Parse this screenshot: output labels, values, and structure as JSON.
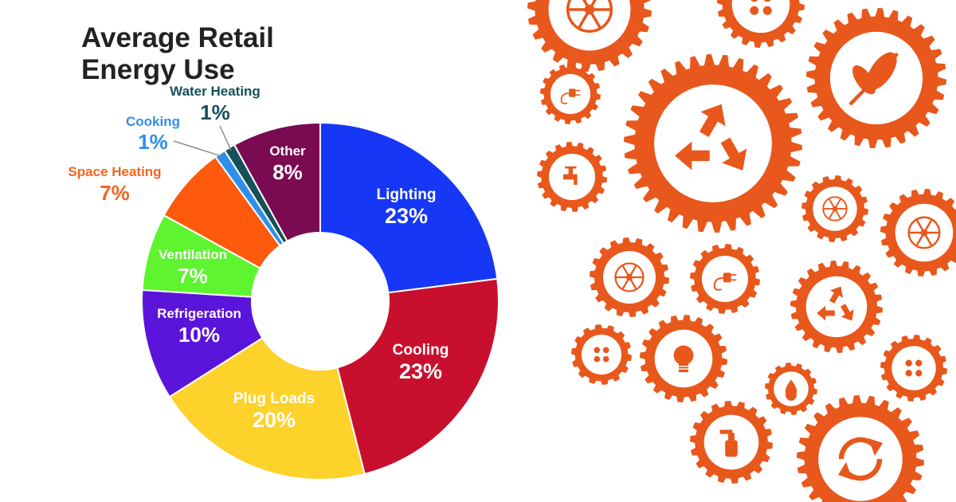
{
  "colors": {
    "gear": "#e8571b",
    "title": "#222222"
  },
  "chart_data": {
    "type": "pie",
    "variant": "donut",
    "title": "Average Retail Energy Use",
    "slices": [
      {
        "label": "Lighting",
        "value": 23,
        "value_label": "23%",
        "color": "#1637f5",
        "label_color": "#ffffff",
        "label_placement": "inside"
      },
      {
        "label": "Cooling",
        "value": 23,
        "value_label": "23%",
        "color": "#c8102e",
        "label_color": "#ffffff",
        "label_placement": "inside"
      },
      {
        "label": "Plug Loads",
        "value": 20,
        "value_label": "20%",
        "color": "#fdd22b",
        "label_color": "#ffffff",
        "label_placement": "inside"
      },
      {
        "label": "Refrigeration",
        "value": 10,
        "value_label": "10%",
        "color": "#5b14d9",
        "label_color": "#ffffff",
        "label_placement": "inside"
      },
      {
        "label": "Ventilation",
        "value": 7,
        "value_label": "7%",
        "color": "#5ef42f",
        "label_color": "#ffffff",
        "label_placement": "inside"
      },
      {
        "label": "Space Heating",
        "value": 7,
        "value_label": "7%",
        "color": "#fd5a0e",
        "label_color": "#f26522",
        "label_placement": "outside"
      },
      {
        "label": "Cooking",
        "value": 1,
        "value_label": "1%",
        "color": "#2f8fe8",
        "label_color": "#2f8fe8",
        "label_placement": "outside"
      },
      {
        "label": "Water Heating",
        "value": 1,
        "value_label": "1%",
        "color": "#16505a",
        "label_color": "#16505a",
        "label_placement": "outside"
      },
      {
        "label": "Other",
        "value": 8,
        "value_label": "8%",
        "color": "#7a0b52",
        "label_color": "#ffffff",
        "label_placement": "inside"
      }
    ]
  },
  "decoration": {
    "description_icons": [
      "plug-icon",
      "leaf-icon",
      "recycle-icon",
      "faucet-icon",
      "lightbulb-icon",
      "droplet-icon",
      "spray-bottle-icon",
      "refresh-icon",
      "wheel-icon",
      "dots-icon"
    ]
  }
}
